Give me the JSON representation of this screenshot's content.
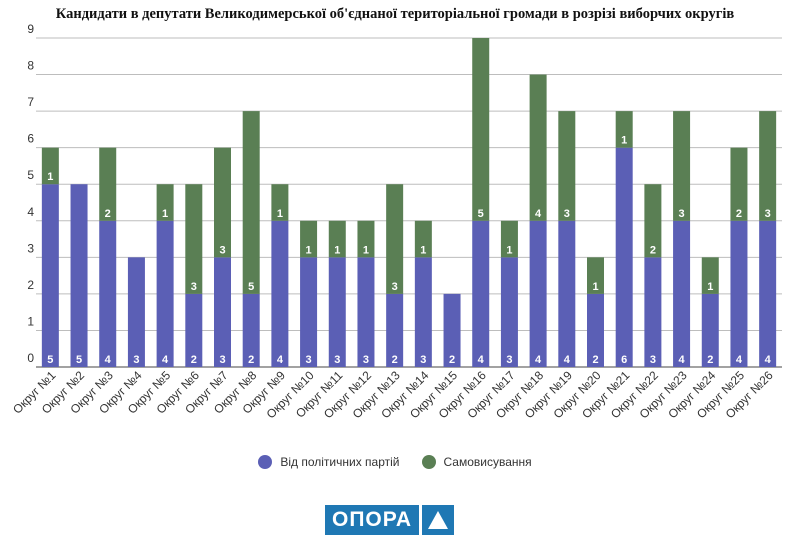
{
  "chart_data": {
    "type": "bar",
    "stacked": true,
    "title": "Кандидати в депутати Великодимерської об'єднаної територіальної громади в розрізі виборчих округів",
    "categories": [
      "Округ №1",
      "Округ №2",
      "Округ №3",
      "Округ №4",
      "Округ №5",
      "Округ №6",
      "Округ №7",
      "Округ №8",
      "Округ №9",
      "Округ №10",
      "Округ №11",
      "Округ №12",
      "Округ №13",
      "Округ №14",
      "Округ №15",
      "Округ №16",
      "Округ №17",
      "Округ №18",
      "Округ №19",
      "Округ №20",
      "Округ №21",
      "Округ №22",
      "Округ №23",
      "Округ №24",
      "Округ №25",
      "Округ №26"
    ],
    "series": [
      {
        "name": "Від політичних партій",
        "color": "#5b5fb5",
        "values": [
          5,
          5,
          4,
          3,
          4,
          2,
          3,
          2,
          4,
          3,
          3,
          3,
          2,
          3,
          2,
          4,
          3,
          4,
          4,
          2,
          6,
          3,
          4,
          2,
          4,
          4
        ]
      },
      {
        "name": "Самовисування",
        "color": "#5a7f54",
        "values": [
          1,
          0,
          2,
          0,
          1,
          3,
          3,
          5,
          1,
          1,
          1,
          1,
          3,
          1,
          0,
          5,
          1,
          4,
          3,
          1,
          1,
          2,
          3,
          1,
          2,
          3
        ]
      }
    ],
    "y_ticks": [
      "0",
      "1",
      "2",
      "3",
      "4",
      "5",
      "6",
      "7",
      "8",
      "9"
    ],
    "ylim": [
      0,
      9
    ],
    "xlabel": "",
    "ylabel": "",
    "grid": true,
    "legend": "bottom"
  },
  "logo": {
    "text": "ОПОРА",
    "color": "#1f78b4"
  }
}
